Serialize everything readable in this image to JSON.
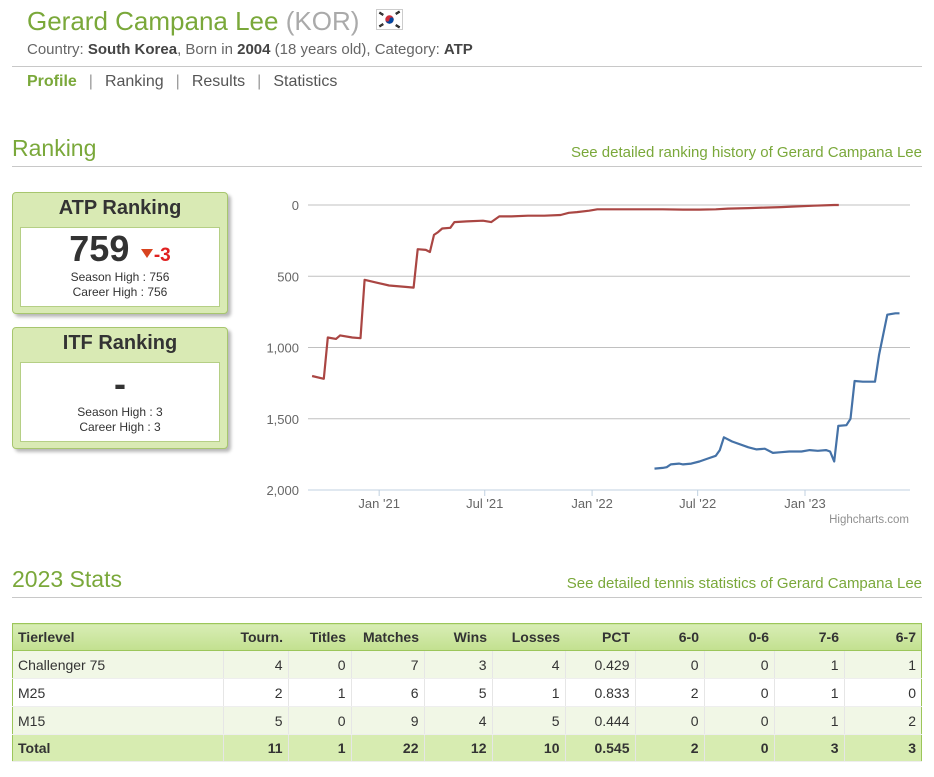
{
  "player": {
    "name": "Gerard Campana Lee",
    "code": "(KOR)",
    "country_label": "Country:",
    "country": "South Korea",
    "born_label": ", Born in",
    "born_year": "2004",
    "age": "(18 years old)",
    "category_label": ", Category:",
    "category": "ATP",
    "flag_icon": "south-korea-flag-icon"
  },
  "nav": {
    "tabs": [
      "Profile",
      "Ranking",
      "Results",
      "Statistics"
    ],
    "separator": "|",
    "active": "Profile"
  },
  "ranking_section": {
    "title": "Ranking",
    "link": "See detailed ranking history of Gerard Campana Lee"
  },
  "atp_box": {
    "title": "ATP Ranking",
    "value": "759",
    "change": "-3",
    "season_high": "Season High : 756",
    "career_high": "Career High : 756"
  },
  "itf_box": {
    "title": "ITF Ranking",
    "value": "-",
    "season_high": "Season High : 3",
    "career_high": "Career High : 3"
  },
  "chart_data": {
    "type": "line",
    "y_reversed": true,
    "ylim": [
      0,
      2000
    ],
    "y_ticks": [
      0,
      500,
      1000,
      1500,
      2000
    ],
    "y_tick_labels": [
      "0",
      "500",
      "1,000",
      "1,500",
      "2,000"
    ],
    "x_ticks": [
      "2021-01-01",
      "2021-07-01",
      "2022-01-01",
      "2022-07-01",
      "2023-01-01"
    ],
    "x_tick_labels": [
      "Jan '21",
      "Jul '21",
      "Jan '22",
      "Jul '22",
      "Jan '23"
    ],
    "xlim": [
      "2020-09-01",
      "2023-06-30"
    ],
    "credits": "Highcharts.com",
    "grid": true,
    "series": [
      {
        "color": "#aa4643",
        "points": [
          [
            "2020-09-08",
            1200
          ],
          [
            "2020-09-28",
            1220
          ],
          [
            "2020-10-05",
            930
          ],
          [
            "2020-10-19",
            940
          ],
          [
            "2020-10-26",
            915
          ],
          [
            "2020-11-16",
            930
          ],
          [
            "2020-11-30",
            935
          ],
          [
            "2020-12-07",
            525
          ],
          [
            "2020-12-28",
            545
          ],
          [
            "2021-01-18",
            565
          ],
          [
            "2021-02-15",
            575
          ],
          [
            "2021-03-01",
            580
          ],
          [
            "2021-03-08",
            310
          ],
          [
            "2021-03-22",
            315
          ],
          [
            "2021-03-29",
            330
          ],
          [
            "2021-04-05",
            210
          ],
          [
            "2021-04-12",
            190
          ],
          [
            "2021-04-19",
            165
          ],
          [
            "2021-05-03",
            160
          ],
          [
            "2021-05-10",
            120
          ],
          [
            "2021-05-31",
            115
          ],
          [
            "2021-06-28",
            110
          ],
          [
            "2021-07-12",
            120
          ],
          [
            "2021-07-26",
            80
          ],
          [
            "2021-08-16",
            80
          ],
          [
            "2021-09-13",
            75
          ],
          [
            "2021-10-11",
            75
          ],
          [
            "2021-11-08",
            70
          ],
          [
            "2021-11-22",
            55
          ],
          [
            "2021-12-06",
            50
          ],
          [
            "2021-12-27",
            40
          ],
          [
            "2022-01-10",
            30
          ],
          [
            "2022-02-07",
            30
          ],
          [
            "2022-03-07",
            30
          ],
          [
            "2022-04-04",
            30
          ],
          [
            "2022-05-02",
            30
          ],
          [
            "2022-06-06",
            32
          ],
          [
            "2022-07-04",
            32
          ],
          [
            "2022-08-01",
            30
          ],
          [
            "2022-08-22",
            25
          ],
          [
            "2022-09-26",
            22
          ],
          [
            "2022-10-24",
            18
          ],
          [
            "2022-11-21",
            15
          ],
          [
            "2022-12-19",
            10
          ],
          [
            "2023-01-16",
            5
          ],
          [
            "2023-02-20",
            0
          ],
          [
            "2023-02-28",
            0
          ]
        ]
      },
      {
        "color": "#4572a7",
        "points": [
          [
            "2022-04-18",
            1850
          ],
          [
            "2022-05-02",
            1845
          ],
          [
            "2022-05-09",
            1840
          ],
          [
            "2022-05-16",
            1820
          ],
          [
            "2022-05-30",
            1815
          ],
          [
            "2022-06-06",
            1820
          ],
          [
            "2022-06-20",
            1815
          ],
          [
            "2022-07-04",
            1800
          ],
          [
            "2022-07-18",
            1780
          ],
          [
            "2022-08-01",
            1760
          ],
          [
            "2022-08-08",
            1720
          ],
          [
            "2022-08-15",
            1630
          ],
          [
            "2022-08-29",
            1660
          ],
          [
            "2022-09-26",
            1700
          ],
          [
            "2022-10-10",
            1715
          ],
          [
            "2022-10-24",
            1710
          ],
          [
            "2022-11-07",
            1740
          ],
          [
            "2022-11-21",
            1735
          ],
          [
            "2022-12-05",
            1730
          ],
          [
            "2022-12-26",
            1730
          ],
          [
            "2023-01-09",
            1720
          ],
          [
            "2023-01-23",
            1725
          ],
          [
            "2023-02-06",
            1720
          ],
          [
            "2023-02-13",
            1730
          ],
          [
            "2023-02-20",
            1800
          ],
          [
            "2023-02-27",
            1550
          ],
          [
            "2023-03-13",
            1545
          ],
          [
            "2023-03-20",
            1500
          ],
          [
            "2023-03-27",
            1235
          ],
          [
            "2023-04-10",
            1240
          ],
          [
            "2023-05-01",
            1240
          ],
          [
            "2023-05-08",
            1050
          ],
          [
            "2023-05-22",
            770
          ],
          [
            "2023-06-05",
            760
          ],
          [
            "2023-06-12",
            760
          ]
        ]
      }
    ]
  },
  "stats_section": {
    "title": "2023 Stats",
    "link": "See detailed tennis statistics of Gerard Campana Lee"
  },
  "stats_table": {
    "headers": [
      "Tierlevel",
      "Tourn.",
      "Titles",
      "Matches",
      "Wins",
      "Losses",
      "PCT",
      "6-0",
      "0-6",
      "7-6",
      "6-7"
    ],
    "rows": [
      [
        "Challenger 75",
        "4",
        "0",
        "7",
        "3",
        "4",
        "0.429",
        "0",
        "0",
        "1",
        "1"
      ],
      [
        "M25",
        "2",
        "1",
        "6",
        "5",
        "1",
        "0.833",
        "2",
        "0",
        "1",
        "0"
      ],
      [
        "M15",
        "5",
        "0",
        "9",
        "4",
        "5",
        "0.444",
        "0",
        "0",
        "1",
        "2"
      ]
    ],
    "total": [
      "Total",
      "11",
      "1",
      "22",
      "12",
      "10",
      "0.545",
      "2",
      "0",
      "3",
      "3"
    ]
  }
}
